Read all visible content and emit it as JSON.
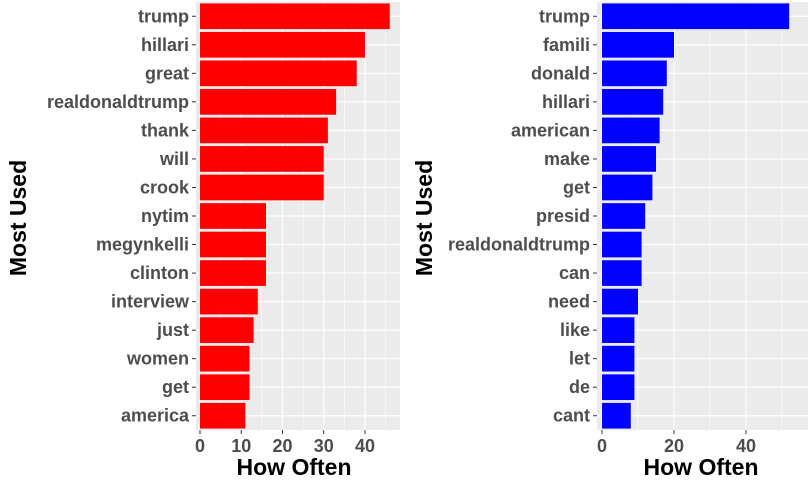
{
  "chart_data": [
    {
      "type": "bar",
      "orientation": "horizontal",
      "color": "#ff0000",
      "xlabel": "How Often",
      "ylabel": "Most Used",
      "xlim": [
        0,
        48
      ],
      "x_ticks": [
        0,
        10,
        20,
        30,
        40
      ],
      "grid": true,
      "categories": [
        "trump",
        "hillari",
        "great",
        "realdonaldtrump",
        "thank",
        "will",
        "crook",
        "nytim",
        "megynkelli",
        "clinton",
        "interview",
        "just",
        "women",
        "get",
        "america"
      ],
      "values": [
        46,
        40,
        38,
        33,
        31,
        30,
        30,
        16,
        16,
        16,
        14,
        13,
        12,
        12,
        11
      ]
    },
    {
      "type": "bar",
      "orientation": "horizontal",
      "color": "#0000ff",
      "xlabel": "How Often",
      "ylabel": "Most Used",
      "xlim": [
        0,
        55
      ],
      "x_ticks": [
        0,
        20,
        40
      ],
      "grid": true,
      "categories": [
        "trump",
        "famili",
        "donald",
        "hillari",
        "american",
        "make",
        "get",
        "presid",
        "realdonaldtrump",
        "can",
        "need",
        "like",
        "let",
        "de",
        "cant"
      ],
      "values": [
        52,
        20,
        18,
        17,
        16,
        15,
        14,
        12,
        11,
        11,
        10,
        9,
        9,
        9,
        8
      ]
    }
  ]
}
